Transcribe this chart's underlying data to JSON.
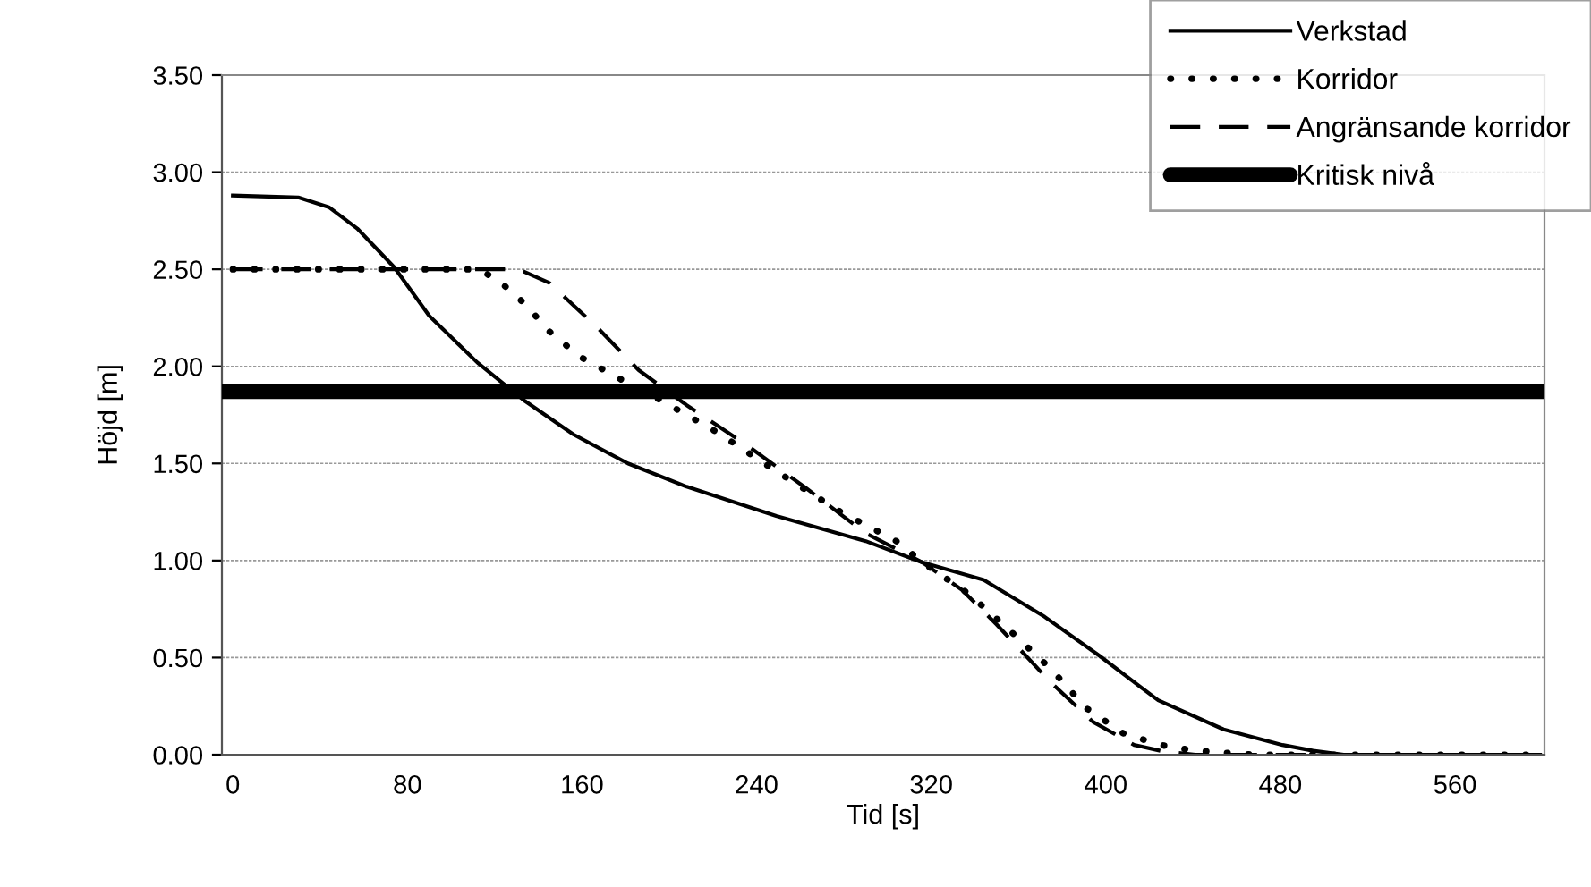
{
  "chart_data": {
    "type": "line",
    "xlabel": "Tid [s]",
    "ylabel": "Höjd [m]",
    "xlim": [
      -5,
      601
    ],
    "xticks": [
      0,
      80,
      160,
      240,
      320,
      400,
      480,
      560
    ],
    "ylim": [
      0,
      3.5
    ],
    "yticks": [
      {
        "value": 0,
        "label": "0.00"
      },
      {
        "value": 0.5,
        "label": "0.50"
      },
      {
        "value": 1,
        "label": "1.00"
      },
      {
        "value": 1.5,
        "label": "1.50"
      },
      {
        "value": 2,
        "label": "2.00"
      },
      {
        "value": 2.5,
        "label": "2.50"
      },
      {
        "value": 3,
        "label": "3.00"
      },
      {
        "value": 3.5,
        "label": "3.50"
      }
    ],
    "grid": "y",
    "legend": "top right",
    "marker": "none",
    "series": [
      {
        "name": "Verkstad",
        "color": "#000000",
        "line_style": "solid",
        "x": [
          0,
          30,
          44,
          57,
          74,
          90,
          112,
          134,
          156,
          181,
          208,
          249,
          290,
          316,
          344,
          372,
          397,
          424,
          454,
          481,
          495,
          509,
          599
        ],
        "values": [
          2.88,
          2.87,
          2.82,
          2.71,
          2.51,
          2.26,
          2.02,
          1.82,
          1.65,
          1.5,
          1.38,
          1.23,
          1.1,
          0.99,
          0.9,
          0.71,
          0.51,
          0.28,
          0.13,
          0.05,
          0.02,
          0,
          0
        ]
      },
      {
        "name": "Korridor",
        "color": "#000000",
        "line_style": "dotted",
        "x": [
          0,
          112,
          121,
          134,
          145,
          159,
          175,
          197,
          222,
          249,
          277,
          304,
          316,
          337,
          355,
          375,
          391,
          408,
          425,
          441,
          468,
          596
        ],
        "values": [
          2.5,
          2.5,
          2.45,
          2.32,
          2.18,
          2.05,
          1.95,
          1.82,
          1.66,
          1.46,
          1.26,
          1.1,
          0.99,
          0.83,
          0.65,
          0.44,
          0.24,
          0.11,
          0.05,
          0.02,
          0,
          0
        ]
      },
      {
        "name": "Angränsande korridor",
        "color": "#000000",
        "line_style": "dashed",
        "x": [
          0,
          131,
          145,
          167,
          186,
          208,
          236,
          263,
          290,
          316,
          334,
          350,
          375,
          394,
          413,
          425,
          441,
          596
        ],
        "values": [
          2.5,
          2.5,
          2.43,
          2.2,
          1.98,
          1.8,
          1.59,
          1.37,
          1.14,
          0.99,
          0.85,
          0.67,
          0.37,
          0.17,
          0.05,
          0.02,
          0,
          0
        ]
      }
    ],
    "ref_lines": [
      {
        "axis": "y",
        "value": 1.87,
        "label": "Kritisk nivå",
        "color": "#000000",
        "line_style": "solid"
      }
    ]
  }
}
